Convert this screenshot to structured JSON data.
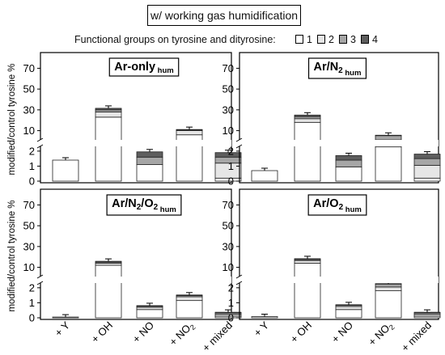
{
  "header": {
    "title": "w/ working gas humidification"
  },
  "legend": {
    "label": "Functional groups on tyrosine and dityrosine:",
    "items": [
      {
        "label": "1",
        "color": "#ffffff"
      },
      {
        "label": "2",
        "color": "#e6e6e6"
      },
      {
        "label": "3",
        "color": "#a6a6a6"
      },
      {
        "label": "4",
        "color": "#5e5e5e"
      }
    ]
  },
  "chart_data": [
    {
      "type": "bar",
      "stacked": true,
      "broken_axis": true,
      "title": "Ar-only",
      "title_sub": "hum",
      "ylabel": "modified/control tyrosine %",
      "categories": [
        "+ Y",
        "+ OH",
        "+ NO",
        "+ NO2",
        "+ mixed"
      ],
      "yticks_lower": [
        0,
        1,
        2
      ],
      "yticks_upper": [
        10,
        30,
        50,
        70
      ],
      "series": [
        {
          "name": "1",
          "values": [
            1.4,
            23,
            1.1,
            6,
            0.2
          ]
        },
        {
          "name": "2",
          "values": [
            0,
            5,
            0,
            4,
            1.0
          ]
        },
        {
          "name": "3",
          "values": [
            0,
            2,
            0.5,
            0.8,
            0.4
          ]
        },
        {
          "name": "4",
          "values": [
            0,
            1.5,
            0.35,
            0.3,
            0.3
          ]
        }
      ]
    },
    {
      "type": "bar",
      "stacked": true,
      "broken_axis": true,
      "title": "Ar/N2",
      "title_sub": "hum",
      "ylabel": "",
      "categories": [
        "+ Y",
        "+ OH",
        "+ NO",
        "+ NO2",
        "+ mixed"
      ],
      "yticks_lower": [
        0,
        1,
        2
      ],
      "yticks_upper": [
        10,
        30,
        50,
        70
      ],
      "series": [
        {
          "name": "1",
          "values": [
            0.7,
            18,
            0.95,
            2.2,
            0.2
          ]
        },
        {
          "name": "2",
          "values": [
            0,
            3.5,
            0,
            2.5,
            0.85
          ]
        },
        {
          "name": "3",
          "values": [
            0,
            2,
            0.45,
            0.6,
            0.45
          ]
        },
        {
          "name": "4",
          "values": [
            0,
            1.5,
            0.3,
            0.3,
            0.3
          ]
        }
      ]
    },
    {
      "type": "bar",
      "stacked": true,
      "broken_axis": true,
      "title": "Ar/N2/O2",
      "title_sub": "hum",
      "ylabel": "modified/control tyrosine %",
      "categories": [
        "+ Y",
        "+ OH",
        "+ NO",
        "+ NO2",
        "+ mixed"
      ],
      "yticks_lower": [
        0,
        1,
        2
      ],
      "yticks_upper": [
        10,
        30,
        50,
        70
      ],
      "series": [
        {
          "name": "1",
          "values": [
            0.05,
            12,
            0.55,
            1.15,
            0.1
          ]
        },
        {
          "name": "2",
          "values": [
            0,
            2,
            0.15,
            0.25,
            0.12
          ]
        },
        {
          "name": "3",
          "values": [
            0,
            1,
            0.07,
            0.08,
            0.1
          ]
        },
        {
          "name": "4",
          "values": [
            0,
            0.8,
            0.04,
            0.04,
            0.05
          ]
        }
      ]
    },
    {
      "type": "bar",
      "stacked": true,
      "broken_axis": true,
      "title": "Ar/O2",
      "title_sub": "hum",
      "ylabel": "",
      "categories": [
        "+ Y",
        "+ OH",
        "+ NO",
        "+ NO2",
        "+ mixed"
      ],
      "yticks_lower": [
        0,
        1,
        2
      ],
      "yticks_upper": [
        10,
        30,
        50,
        70
      ],
      "series": [
        {
          "name": "1",
          "values": [
            0.08,
            14,
            0.55,
            1.8,
            0.1
          ]
        },
        {
          "name": "2",
          "values": [
            0,
            2.5,
            0.2,
            0.25,
            0.12
          ]
        },
        {
          "name": "3",
          "values": [
            0,
            1,
            0.08,
            0.08,
            0.1
          ]
        },
        {
          "name": "4",
          "values": [
            0,
            0.8,
            0.04,
            0.04,
            0.05
          ]
        }
      ]
    }
  ]
}
